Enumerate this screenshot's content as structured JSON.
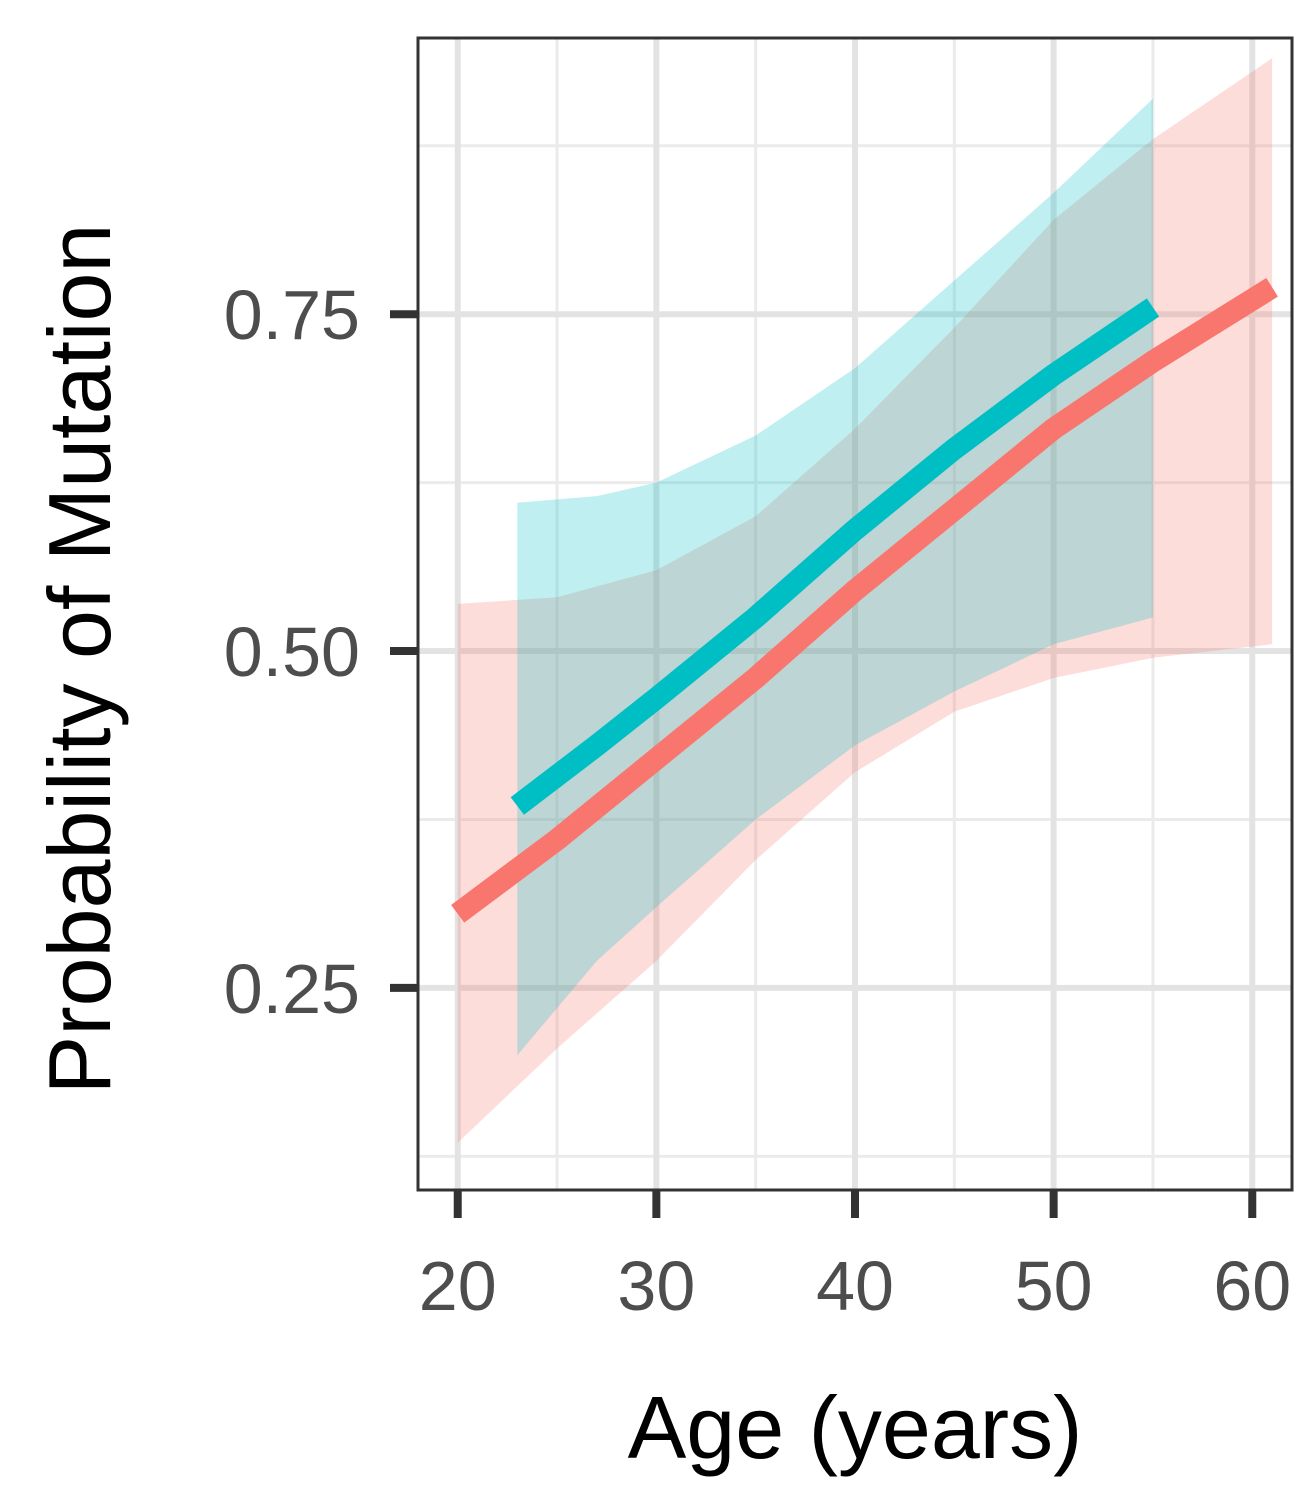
{
  "chart_data": {
    "type": "line",
    "title": "",
    "xlabel": "Age (years)",
    "ylabel": "Probability of Mutation",
    "xlim": [
      18,
      62
    ],
    "ylim": [
      0.1,
      0.955
    ],
    "x_ticks": [
      20,
      30,
      40,
      50,
      60
    ],
    "x_tick_labels": [
      "20",
      "30",
      "40",
      "50",
      "60"
    ],
    "y_ticks": [
      0.25,
      0.5,
      0.75
    ],
    "y_tick_labels": [
      "0.25",
      "0.50",
      "0.75"
    ],
    "grid": true,
    "legend": "none",
    "series": [
      {
        "color": "#F8766D",
        "x": [
          20,
          25,
          30,
          35,
          40,
          45,
          50,
          55,
          61
        ],
        "y": [
          0.305,
          0.36,
          0.42,
          0.48,
          0.545,
          0.605,
          0.665,
          0.715,
          0.77
        ],
        "ci_lower": [
          0.135,
          0.205,
          0.27,
          0.345,
          0.41,
          0.455,
          0.48,
          0.495,
          0.505
        ],
        "ci_upper": [
          0.535,
          0.54,
          0.56,
          0.6,
          0.665,
          0.74,
          0.82,
          0.88,
          0.94
        ]
      },
      {
        "color": "#00BFC4",
        "x": [
          23,
          27,
          30,
          35,
          40,
          45,
          50,
          55
        ],
        "y": [
          0.385,
          0.43,
          0.465,
          0.525,
          0.59,
          0.65,
          0.705,
          0.755
        ],
        "ci_lower": [
          0.2,
          0.27,
          0.31,
          0.375,
          0.43,
          0.47,
          0.505,
          0.525
        ],
        "ci_upper": [
          0.61,
          0.615,
          0.625,
          0.66,
          0.71,
          0.775,
          0.84,
          0.91
        ]
      }
    ]
  }
}
